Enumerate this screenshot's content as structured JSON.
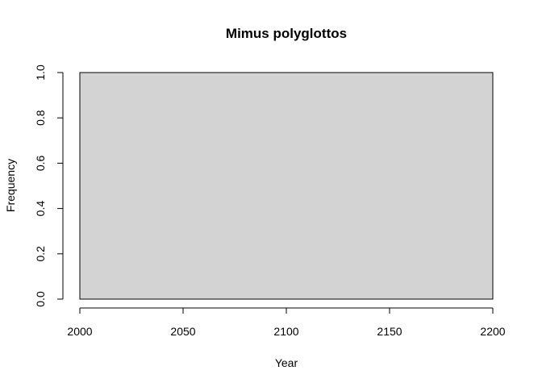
{
  "chart_data": {
    "type": "bar",
    "subtype": "histogram",
    "title": "Mimus polyglottos",
    "xlabel": "Year",
    "ylabel": "Frequency",
    "bins": [
      {
        "start": 2000,
        "end": 2200,
        "count": 1
      }
    ],
    "xlim": [
      2000,
      2200
    ],
    "ylim": [
      0,
      1
    ],
    "xticks": [
      2000,
      2050,
      2100,
      2150,
      2200
    ],
    "yticks": [
      0.0,
      0.2,
      0.4,
      0.6,
      0.8,
      1.0
    ],
    "xtick_labels": [
      "2000",
      "2050",
      "2100",
      "2150",
      "2200"
    ],
    "ytick_labels": [
      "0.0",
      "0.2",
      "0.4",
      "0.6",
      "0.8",
      "1.0"
    ],
    "bar_fill": "#d3d3d3",
    "bar_stroke": "#000000",
    "grid": false,
    "legend": "none"
  }
}
